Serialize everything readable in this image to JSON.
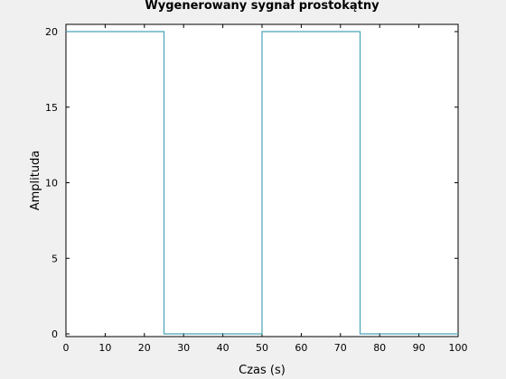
{
  "chart_data": {
    "type": "line",
    "step": true,
    "title": "Wygenerowany sygnał prostokątny",
    "xlabel": "Czas (s)",
    "ylabel": "Amplituda",
    "xlim": [
      0,
      100
    ],
    "ylim": [
      0,
      20
    ],
    "xticks": [
      "0",
      "10",
      "20",
      "30",
      "40",
      "50",
      "60",
      "70",
      "80",
      "90",
      "100"
    ],
    "yticks": [
      "0",
      "5",
      "10",
      "15",
      "20"
    ],
    "grid": false,
    "series": [
      {
        "color": "#4aa3b8",
        "x": [
          0,
          25,
          25,
          50,
          50,
          75,
          75,
          100
        ],
        "y": [
          20,
          20,
          0,
          0,
          20,
          20,
          0,
          0
        ]
      }
    ]
  }
}
